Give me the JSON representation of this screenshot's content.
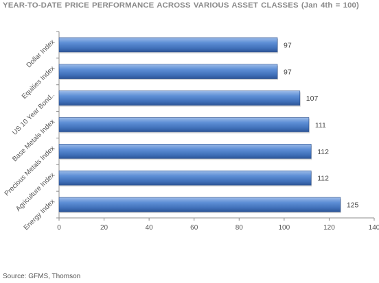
{
  "chart_data": {
    "type": "bar",
    "orientation": "horizontal",
    "title": "YEAR-TO-DATE  PRICE  PERFORMANCE  ACROSS  VARIOUS  ASSET CLASSES (Jan 4th = 100)",
    "categories": [
      "Dollar Index",
      "Equities Index",
      "US 10 Year Bond..",
      "Base Metals Index",
      "Precious Metals Index",
      "Agriculture Index",
      "Energy Index"
    ],
    "values": [
      97,
      97,
      107,
      111,
      112,
      112,
      125
    ],
    "data_labels": [
      "97",
      "97",
      "107",
      "111",
      "112",
      "112",
      "125"
    ],
    "xlim": [
      0,
      140
    ],
    "x_ticks": [
      0,
      20,
      40,
      60,
      80,
      100,
      120,
      140
    ],
    "x_tick_labels": [
      "0",
      "20",
      "40",
      "60",
      "80",
      "100",
      "120",
      "140"
    ],
    "grid": false,
    "legend": "none",
    "bar_color": "#4a7cc7"
  },
  "source": "Source: GFMS, Thomson"
}
